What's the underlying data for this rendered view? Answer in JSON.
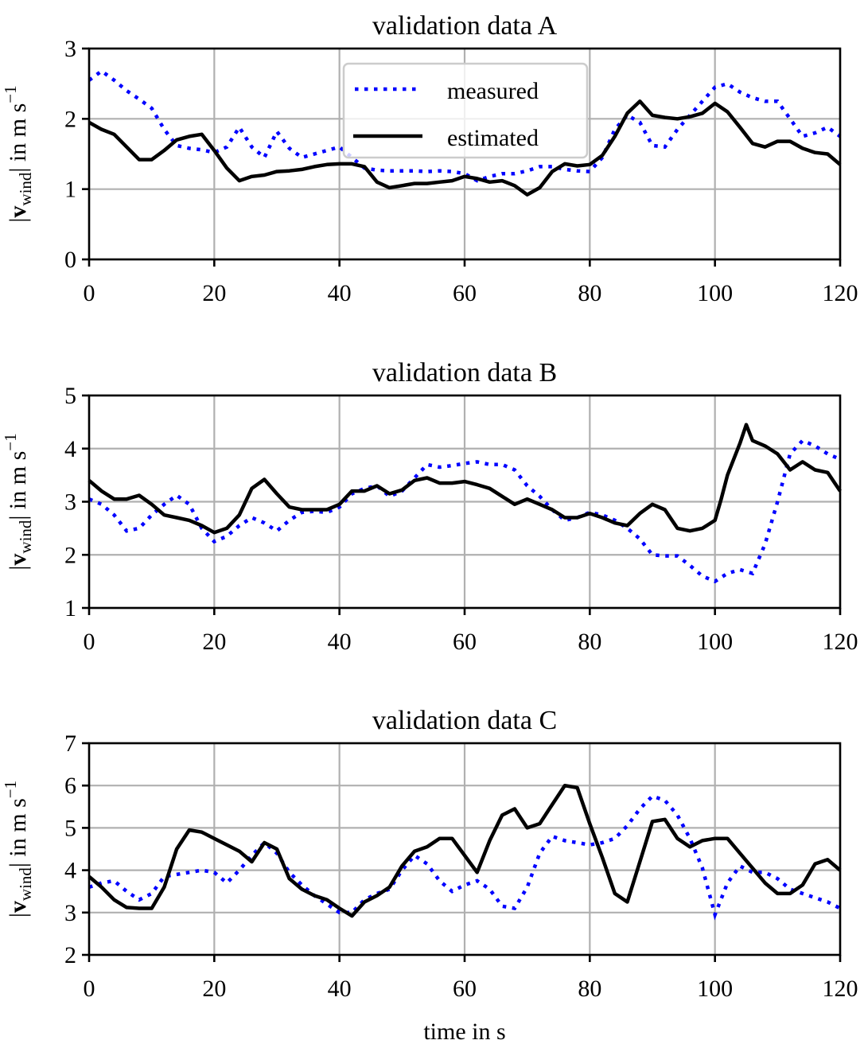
{
  "chart_data": [
    {
      "type": "line",
      "title": "validation data A",
      "xlabel": "",
      "ylabel": "|v_wind| in m s^-1",
      "xlim": [
        0,
        120
      ],
      "ylim": [
        0,
        3
      ],
      "xticks": [
        0,
        20,
        40,
        60,
        80,
        100,
        120
      ],
      "yticks": [
        0,
        1,
        2,
        3
      ],
      "grid": true,
      "legend": {
        "placement": "upper-center",
        "entries": [
          "measured",
          "estimated"
        ]
      },
      "series": [
        {
          "name": "measured",
          "style": "dotted",
          "color": "#0000ff",
          "x": [
            0,
            2,
            4,
            6,
            8,
            10,
            12,
            14,
            16,
            18,
            20,
            22,
            24,
            26,
            28,
            30,
            32,
            34,
            36,
            38,
            40,
            42,
            44,
            46,
            48,
            50,
            52,
            54,
            56,
            58,
            60,
            62,
            64,
            66,
            68,
            70,
            72,
            74,
            76,
            78,
            80,
            82,
            84,
            86,
            88,
            90,
            92,
            94,
            96,
            98,
            100,
            102,
            104,
            106,
            108,
            110,
            112,
            114,
            116,
            118,
            120
          ],
          "y": [
            2.55,
            2.68,
            2.55,
            2.4,
            2.28,
            2.15,
            1.85,
            1.62,
            1.58,
            1.56,
            1.52,
            1.6,
            1.88,
            1.6,
            1.45,
            1.82,
            1.58,
            1.45,
            1.5,
            1.55,
            1.6,
            1.45,
            1.3,
            1.27,
            1.26,
            1.26,
            1.26,
            1.25,
            1.26,
            1.25,
            1.22,
            1.12,
            1.18,
            1.22,
            1.22,
            1.26,
            1.32,
            1.32,
            1.28,
            1.26,
            1.25,
            1.45,
            1.85,
            2.05,
            1.95,
            1.62,
            1.6,
            1.85,
            2.05,
            2.25,
            2.45,
            2.5,
            2.38,
            2.3,
            2.25,
            2.25,
            2.0,
            1.75,
            1.8,
            1.88,
            1.75
          ]
        },
        {
          "name": "estimated",
          "style": "solid",
          "color": "#000000",
          "x": [
            0,
            2,
            4,
            6,
            8,
            10,
            12,
            14,
            16,
            18,
            20,
            22,
            24,
            26,
            28,
            30,
            32,
            34,
            36,
            38,
            40,
            42,
            44,
            46,
            48,
            50,
            52,
            54,
            56,
            58,
            60,
            62,
            64,
            66,
            68,
            70,
            72,
            74,
            76,
            78,
            80,
            82,
            84,
            86,
            88,
            90,
            92,
            94,
            96,
            98,
            100,
            102,
            104,
            106,
            108,
            110,
            112,
            114,
            116,
            118,
            120
          ],
          "y": [
            1.95,
            1.85,
            1.78,
            1.6,
            1.42,
            1.42,
            1.55,
            1.7,
            1.75,
            1.78,
            1.55,
            1.3,
            1.12,
            1.18,
            1.2,
            1.25,
            1.26,
            1.28,
            1.32,
            1.35,
            1.36,
            1.36,
            1.32,
            1.1,
            1.02,
            1.05,
            1.08,
            1.08,
            1.1,
            1.12,
            1.18,
            1.15,
            1.1,
            1.12,
            1.05,
            0.92,
            1.02,
            1.25,
            1.36,
            1.33,
            1.35,
            1.48,
            1.75,
            2.08,
            2.25,
            2.05,
            2.02,
            2.0,
            2.03,
            2.08,
            2.22,
            2.1,
            1.88,
            1.65,
            1.6,
            1.68,
            1.68,
            1.58,
            1.52,
            1.5,
            1.35
          ]
        }
      ]
    },
    {
      "type": "line",
      "title": "validation data B",
      "xlabel": "",
      "ylabel": "|v_wind| in m s^-1",
      "xlim": [
        0,
        120
      ],
      "ylim": [
        1,
        5
      ],
      "xticks": [
        0,
        20,
        40,
        60,
        80,
        100,
        120
      ],
      "yticks": [
        1,
        2,
        3,
        4,
        5
      ],
      "grid": true,
      "series": [
        {
          "name": "measured",
          "style": "dotted",
          "color": "#0000ff",
          "x": [
            0,
            2,
            4,
            6,
            8,
            10,
            12,
            14,
            16,
            18,
            20,
            22,
            24,
            26,
            28,
            30,
            32,
            34,
            36,
            38,
            40,
            42,
            44,
            46,
            48,
            50,
            52,
            54,
            56,
            58,
            60,
            62,
            64,
            66,
            68,
            70,
            72,
            74,
            76,
            78,
            80,
            82,
            84,
            86,
            88,
            90,
            92,
            94,
            96,
            98,
            100,
            102,
            104,
            106,
            108,
            110,
            112,
            114,
            116,
            118,
            120
          ],
          "y": [
            3.05,
            2.95,
            2.75,
            2.45,
            2.5,
            2.75,
            2.95,
            3.12,
            2.95,
            2.5,
            2.25,
            2.35,
            2.55,
            2.7,
            2.6,
            2.45,
            2.65,
            2.8,
            2.82,
            2.8,
            2.9,
            3.15,
            3.25,
            3.3,
            3.1,
            3.2,
            3.45,
            3.7,
            3.65,
            3.68,
            3.72,
            3.75,
            3.7,
            3.7,
            3.6,
            3.3,
            3.1,
            2.85,
            2.65,
            2.7,
            2.8,
            2.75,
            2.65,
            2.5,
            2.3,
            2.0,
            1.98,
            1.98,
            1.8,
            1.6,
            1.5,
            1.65,
            1.72,
            1.65,
            2.2,
            3.0,
            3.9,
            4.15,
            4.05,
            3.9,
            3.8
          ]
        },
        {
          "name": "estimated",
          "style": "solid",
          "color": "#000000",
          "x": [
            0,
            2,
            4,
            6,
            8,
            10,
            12,
            14,
            16,
            18,
            20,
            22,
            24,
            26,
            28,
            30,
            32,
            34,
            36,
            38,
            40,
            42,
            44,
            46,
            48,
            50,
            52,
            54,
            56,
            58,
            60,
            62,
            64,
            66,
            68,
            70,
            72,
            74,
            76,
            78,
            80,
            82,
            84,
            86,
            88,
            90,
            92,
            94,
            96,
            98,
            100,
            101,
            102,
            104,
            105,
            106,
            108,
            110,
            112,
            114,
            116,
            118,
            120
          ],
          "y": [
            3.4,
            3.2,
            3.05,
            3.05,
            3.12,
            2.95,
            2.75,
            2.7,
            2.65,
            2.55,
            2.42,
            2.5,
            2.75,
            3.25,
            3.42,
            3.15,
            2.9,
            2.85,
            2.85,
            2.85,
            2.95,
            3.2,
            3.2,
            3.3,
            3.15,
            3.22,
            3.4,
            3.45,
            3.35,
            3.35,
            3.38,
            3.32,
            3.25,
            3.1,
            2.95,
            3.05,
            2.95,
            2.85,
            2.7,
            2.7,
            2.78,
            2.7,
            2.6,
            2.55,
            2.78,
            2.95,
            2.85,
            2.5,
            2.45,
            2.5,
            2.65,
            3.05,
            3.5,
            4.1,
            4.45,
            4.15,
            4.05,
            3.9,
            3.6,
            3.75,
            3.6,
            3.55,
            3.2
          ]
        }
      ]
    },
    {
      "type": "line",
      "title": "validation data C",
      "xlabel": "time in s",
      "ylabel": "|v_wind| in m s^-1",
      "xlim": [
        0,
        120
      ],
      "ylim": [
        2,
        7
      ],
      "xticks": [
        0,
        20,
        40,
        60,
        80,
        100,
        120
      ],
      "yticks": [
        2,
        3,
        4,
        5,
        6,
        7
      ],
      "grid": true,
      "series": [
        {
          "name": "measured",
          "style": "dotted",
          "color": "#0000ff",
          "x": [
            0,
            2,
            4,
            6,
            8,
            10,
            12,
            14,
            16,
            18,
            20,
            22,
            24,
            26,
            28,
            30,
            32,
            34,
            36,
            38,
            40,
            42,
            44,
            46,
            48,
            50,
            52,
            54,
            56,
            58,
            60,
            62,
            64,
            66,
            68,
            70,
            72,
            74,
            76,
            78,
            80,
            82,
            84,
            86,
            88,
            90,
            92,
            94,
            96,
            98,
            100,
            102,
            104,
            106,
            108,
            110,
            112,
            114,
            116,
            118,
            120
          ],
          "y": [
            3.6,
            3.7,
            3.75,
            3.5,
            3.3,
            3.45,
            3.85,
            3.9,
            3.95,
            4.0,
            3.95,
            3.7,
            4.0,
            4.35,
            4.65,
            4.4,
            3.95,
            3.65,
            3.4,
            3.2,
            3.0,
            3.0,
            3.3,
            3.45,
            3.55,
            4.0,
            4.35,
            4.15,
            3.75,
            3.5,
            3.65,
            3.75,
            3.55,
            3.15,
            3.1,
            3.6,
            4.4,
            4.8,
            4.7,
            4.65,
            4.6,
            4.65,
            4.75,
            5.05,
            5.45,
            5.75,
            5.65,
            5.3,
            4.75,
            4.05,
            2.95,
            3.7,
            4.1,
            3.95,
            3.95,
            3.8,
            3.55,
            3.45,
            3.35,
            3.25,
            3.1
          ]
        },
        {
          "name": "estimated",
          "style": "solid",
          "color": "#000000",
          "x": [
            0,
            2,
            4,
            6,
            8,
            10,
            12,
            14,
            16,
            18,
            20,
            22,
            24,
            26,
            28,
            30,
            32,
            34,
            36,
            38,
            40,
            42,
            44,
            46,
            48,
            50,
            52,
            54,
            56,
            58,
            60,
            62,
            64,
            66,
            68,
            70,
            72,
            74,
            76,
            78,
            80,
            82,
            84,
            86,
            88,
            90,
            92,
            94,
            96,
            98,
            100,
            102,
            104,
            106,
            108,
            110,
            112,
            114,
            116,
            118,
            120
          ],
          "y": [
            3.85,
            3.6,
            3.3,
            3.12,
            3.1,
            3.1,
            3.6,
            4.5,
            4.95,
            4.9,
            4.75,
            4.6,
            4.45,
            4.2,
            4.65,
            4.5,
            3.8,
            3.55,
            3.4,
            3.3,
            3.1,
            2.92,
            3.25,
            3.4,
            3.6,
            4.1,
            4.45,
            4.55,
            4.75,
            4.75,
            4.35,
            3.95,
            4.7,
            5.3,
            5.45,
            5.0,
            5.1,
            5.55,
            6.0,
            5.95,
            5.1,
            4.3,
            3.45,
            3.25,
            4.2,
            5.15,
            5.2,
            4.75,
            4.55,
            4.7,
            4.75,
            4.75,
            4.4,
            4.05,
            3.7,
            3.45,
            3.45,
            3.65,
            4.15,
            4.25,
            4.0
          ]
        }
      ]
    }
  ]
}
